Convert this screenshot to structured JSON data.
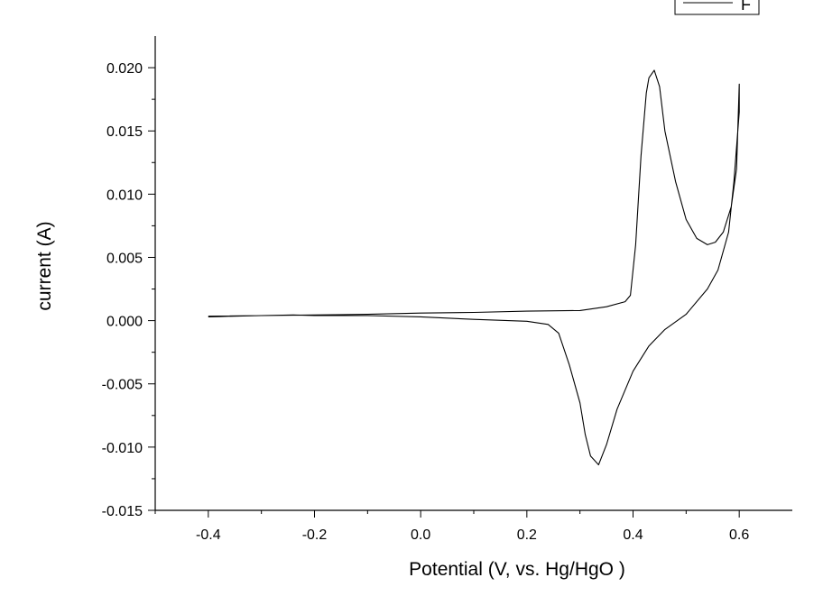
{
  "chart_data": {
    "type": "line",
    "title": "",
    "xlabel": "Potential (V, vs. Hg/HgO )",
    "ylabel": "current (A)",
    "xlim": [
      -0.5,
      0.7
    ],
    "ylim": [
      -0.015,
      0.0225
    ],
    "x_ticks": [
      -0.4,
      -0.2,
      0.0,
      0.2,
      0.4,
      0.6
    ],
    "x_tick_labels": [
      "-0.4",
      "-0.2",
      "0.0",
      "0.2",
      "0.4",
      "0.6"
    ],
    "y_ticks": [
      -0.015,
      -0.01,
      -0.005,
      0.0,
      0.005,
      0.01,
      0.015,
      0.02
    ],
    "y_tick_labels": [
      "-0.015",
      "-0.010",
      "-0.005",
      "0.000",
      "0.005",
      "0.010",
      "0.015",
      "0.020"
    ],
    "grid": false,
    "legend_position": "top-right",
    "series": [
      {
        "name": "F",
        "color": "#000000",
        "points": [
          [
            -0.4,
            0.0003
          ],
          [
            -0.3,
            0.0004
          ],
          [
            -0.24,
            0.00045
          ],
          [
            -0.2,
            0.0004
          ],
          [
            -0.1,
            0.0004
          ],
          [
            0.0,
            0.0003
          ],
          [
            0.1,
            0.0001
          ],
          [
            0.2,
            -5e-05
          ],
          [
            0.24,
            -0.0003
          ],
          [
            0.26,
            -0.001
          ],
          [
            0.28,
            -0.0035
          ],
          [
            0.3,
            -0.0065
          ],
          [
            0.31,
            -0.009
          ],
          [
            0.32,
            -0.0107
          ],
          [
            0.335,
            -0.0114
          ],
          [
            0.35,
            -0.0098
          ],
          [
            0.37,
            -0.007
          ],
          [
            0.4,
            -0.004
          ],
          [
            0.43,
            -0.002
          ],
          [
            0.46,
            -0.0007
          ],
          [
            0.5,
            0.0005
          ],
          [
            0.54,
            0.0025
          ],
          [
            0.56,
            0.004
          ],
          [
            0.58,
            0.007
          ],
          [
            0.59,
            0.011
          ],
          [
            0.6,
            0.0165
          ],
          [
            0.6,
            0.0187
          ],
          [
            0.595,
            0.012
          ],
          [
            0.585,
            0.009
          ],
          [
            0.57,
            0.007
          ],
          [
            0.555,
            0.0062
          ],
          [
            0.54,
            0.006
          ],
          [
            0.52,
            0.0065
          ],
          [
            0.5,
            0.008
          ],
          [
            0.48,
            0.011
          ],
          [
            0.46,
            0.015
          ],
          [
            0.45,
            0.0185
          ],
          [
            0.44,
            0.0198
          ],
          [
            0.43,
            0.0192
          ],
          [
            0.425,
            0.018
          ],
          [
            0.415,
            0.013
          ],
          [
            0.405,
            0.006
          ],
          [
            0.395,
            0.002
          ],
          [
            0.385,
            0.0015
          ],
          [
            0.35,
            0.0011
          ],
          [
            0.3,
            0.0008
          ],
          [
            0.2,
            0.00075
          ],
          [
            0.1,
            0.00065
          ],
          [
            0.0,
            0.0006
          ],
          [
            -0.1,
            0.0005
          ],
          [
            -0.2,
            0.00045
          ],
          [
            -0.3,
            0.0004
          ],
          [
            -0.4,
            0.00035
          ]
        ]
      }
    ]
  }
}
